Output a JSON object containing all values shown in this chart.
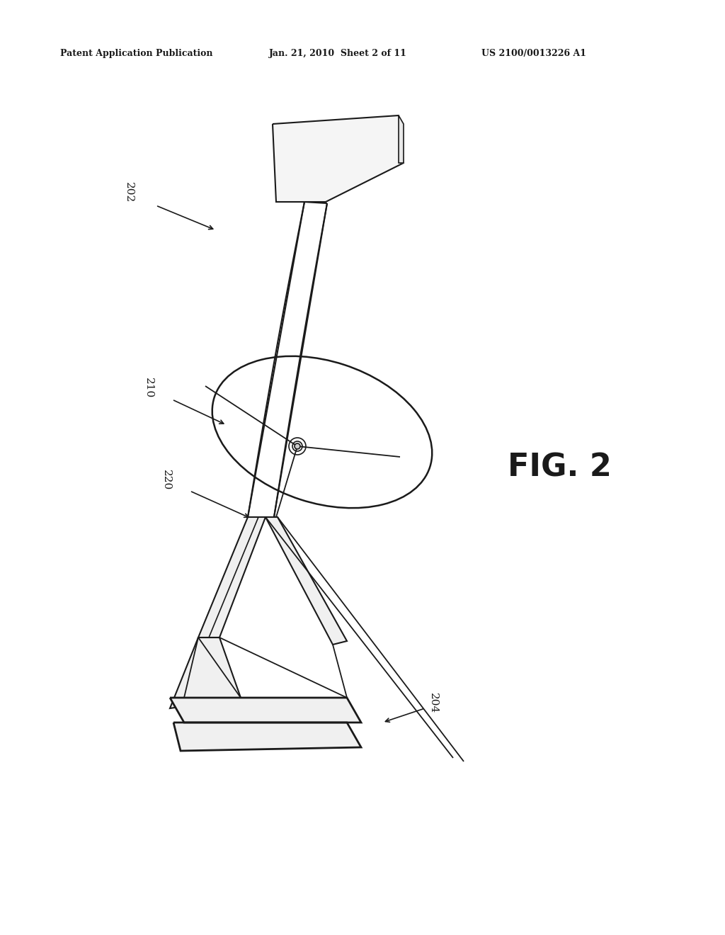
{
  "bg_color": "#ffffff",
  "text_color": "#1a1a1a",
  "header_left": "Patent Application Publication",
  "header_mid": "Jan. 21, 2010  Sheet 2 of 11",
  "header_right": "US 2100/0013226 A1",
  "fig_label": "FIG. 2",
  "lc": "#1a1a1a",
  "lw": 1.6
}
